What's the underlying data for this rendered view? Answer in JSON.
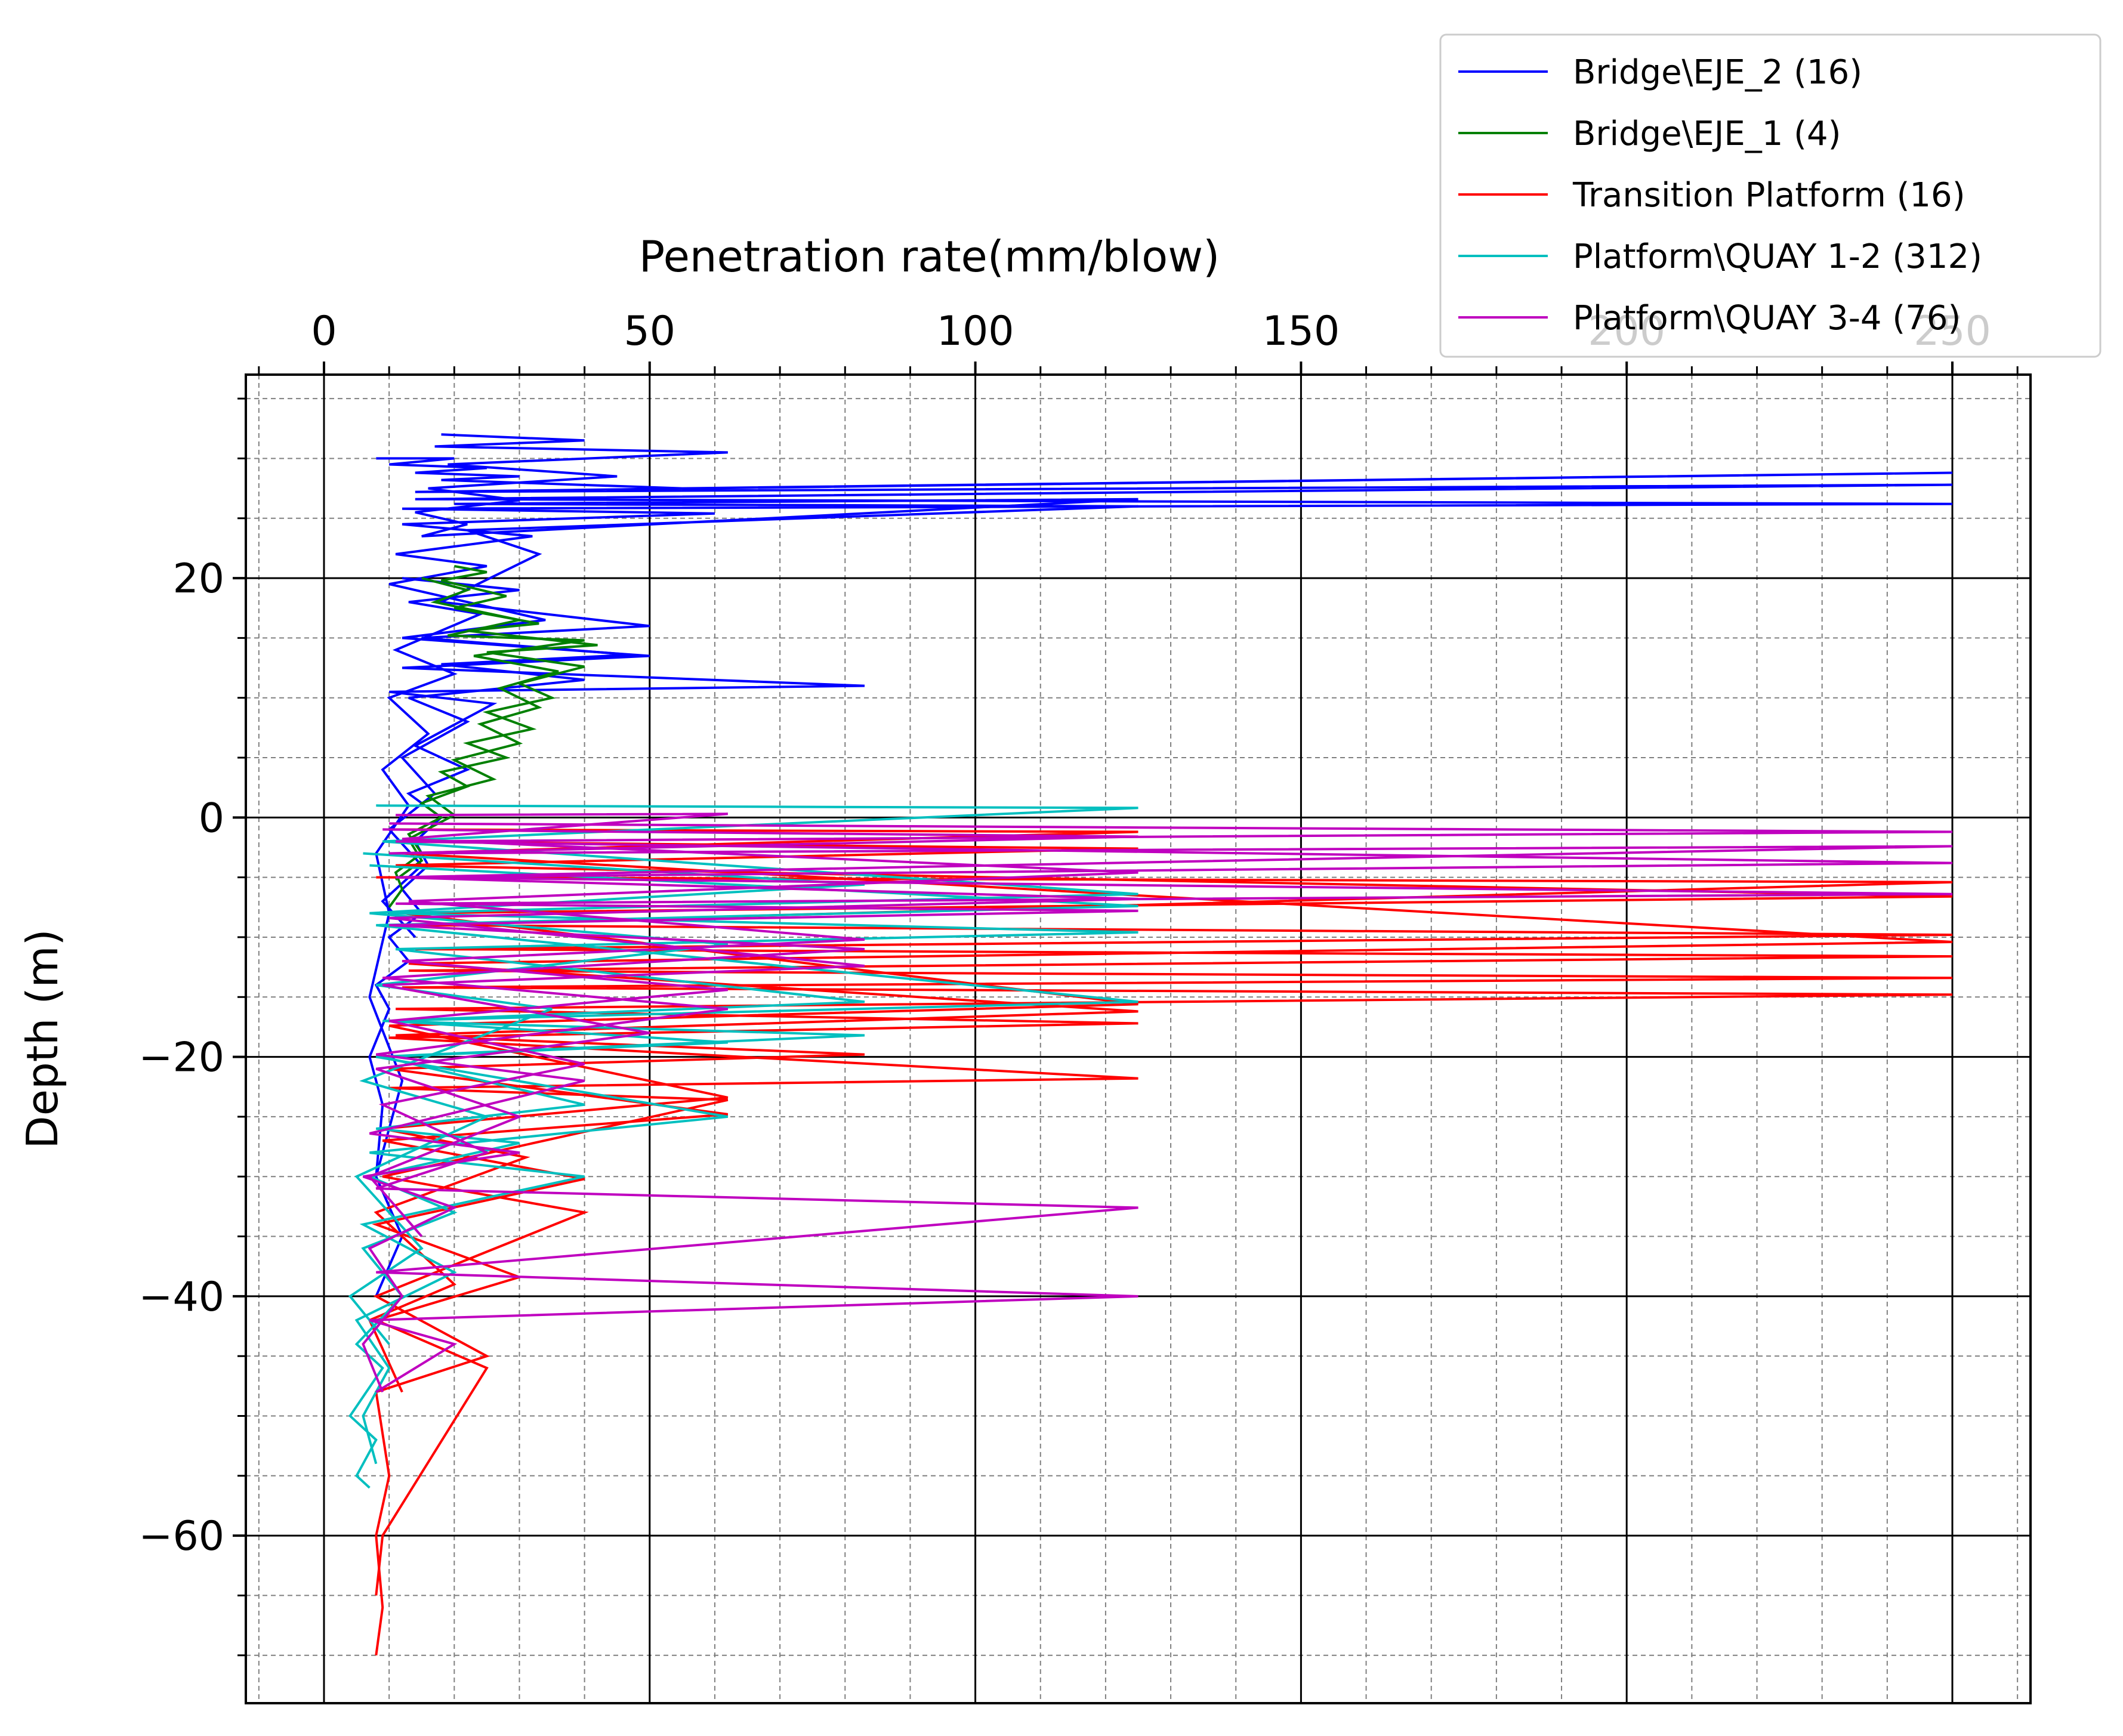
{
  "chart_data": {
    "type": "line",
    "title": "",
    "xlabel": "Penetration rate(mm/blow)",
    "ylabel": "Depth (m)",
    "xlim": [
      -12,
      262
    ],
    "ylim": [
      -74,
      37
    ],
    "x_ticks": [
      0,
      50,
      100,
      150,
      200,
      250
    ],
    "x_tick_labels": [
      "0",
      "50",
      "100",
      "150",
      "200",
      "250"
    ],
    "y_ticks": [
      -60,
      -40,
      -20,
      0,
      20
    ],
    "y_tick_labels": [
      "−60",
      "−40",
      "−20",
      "0",
      "20"
    ],
    "x_axis_position": "top",
    "grid": {
      "major": true,
      "minor": true,
      "minor_style": "dashed"
    },
    "legend": {
      "placement": "top-right, outside plot"
    },
    "series": [
      {
        "name": "Bridge\\EJE_2 (16)",
        "color": "#0000ff",
        "traces": [
          {
            "x": [
              8,
              20,
              10,
              25,
              14,
              30,
              18,
              55,
              250,
              14,
              250,
              14,
              250,
              12,
              60,
              12,
              32,
              11,
              25,
              10,
              34,
              12,
              50,
              12,
              83,
              10,
              26,
              14,
              22,
              13,
              18,
              14,
              16,
              12,
              15,
              10,
              13,
              8,
              10,
              7,
              9,
              8,
              12,
              8
            ],
            "y": [
              30,
              30,
              29.5,
              29.2,
              28.8,
              28.5,
              28.2,
              27.5,
              28.8,
              27.2,
              27.8,
              26.6,
              26.2,
              25.8,
              25.4,
              24.5,
              23.5,
              22.0,
              21.0,
              19.5,
              16.5,
              15.0,
              13.5,
              12.5,
              11.0,
              10.5,
              9.5,
              6.0,
              4.0,
              2.0,
              0,
              -2.0,
              -4.0,
              -6.0,
              -8.0,
              -10.0,
              -12.0,
              -14.0,
              -16.0,
              -20.0,
              -24.0,
              -30.0,
              -35.0,
              -40.0
            ]
          },
          {
            "x": [
              18,
              40,
              17,
              62,
              19,
              45,
              16,
              30,
              14,
              22,
              15,
              125,
              20,
              125,
              22,
              33,
              18,
              50,
              15,
              47,
              18,
              40,
              13,
              22,
              12,
              17,
              10,
              15,
              9,
              14
            ],
            "y": [
              32,
              31.5,
              31,
              30.5,
              29.5,
              28.5,
              27.5,
              26.5,
              25.5,
              24.5,
              23.5,
              26.6,
              26.2,
              26.0,
              24.0,
              22.0,
              18.0,
              16.0,
              15.0,
              13.6,
              12.8,
              11.5,
              10.0,
              8.0,
              5.0,
              2.0,
              -1.0,
              -4.0,
              -7.0,
              -10.0
            ]
          },
          {
            "x": [
              12,
              30,
              13,
              24,
              11,
              20,
              10,
              16,
              9,
              13,
              8,
              10,
              7,
              12,
              8
            ],
            "y": [
              20,
              19,
              18,
              17,
              14,
              12,
              10,
              7,
              4,
              1,
              -3,
              -8,
              -15,
              -22,
              -30
            ]
          }
        ]
      },
      {
        "name": "Bridge\\EJE_1 (4)",
        "color": "#008000",
        "traces": [
          {
            "x": [
              20,
              25,
              18,
              28,
              20,
              33,
              22,
              42,
              25,
              40,
              30,
              35,
              25,
              32,
              22,
              28,
              18,
              22,
              15,
              18,
              13,
              15,
              11,
              12,
              10
            ],
            "y": [
              21,
              20.5,
              19.8,
              18.5,
              17.5,
              16.2,
              15.6,
              14.4,
              13.8,
              12.6,
              11.2,
              10,
              8.8,
              7.4,
              6.2,
              5,
              3.8,
              2.6,
              1.2,
              0,
              -1.4,
              -3,
              -4.6,
              -6,
              -7.5
            ]
          },
          {
            "x": [
              15,
              22,
              17,
              30,
              19,
              40,
              23,
              36,
              27,
              33,
              24,
              30,
              20,
              26,
              16,
              20,
              13,
              15,
              11
            ],
            "y": [
              20,
              19,
              18,
              16.5,
              15.2,
              14.8,
              13.5,
              12.2,
              10.8,
              9.2,
              7.8,
              6.2,
              4.8,
              3.2,
              1.8,
              0.2,
              -1.8,
              -3.6,
              -5.2
            ]
          }
        ]
      },
      {
        "name": "Transition Platform (16)",
        "color": "#ff0000",
        "traces": [
          {
            "x": [
              8,
              250,
              15,
              250,
              14,
              250,
              13,
              250,
              12,
              250,
              11,
              125,
              10,
              125,
              10,
              62,
              9,
              40,
              8,
              25,
              8,
              10,
              8,
              9,
              8
            ],
            "y": [
              -5,
              -5.4,
              -9,
              -9.8,
              -11,
              -11.6,
              -12.8,
              -13.4,
              -14.2,
              -14.8,
              -16,
              -17.2,
              -18.4,
              -21.8,
              -22.6,
              -23.6,
              -30,
              -33,
              -40,
              -45,
              -48,
              -55,
              -60,
              -66,
              -70
            ]
          },
          {
            "x": [
              10,
              125,
              12,
              250,
              13,
              125,
              11,
              83,
              10,
              62,
              9,
              40,
              8,
              30,
              8,
              25,
              9,
              8
            ],
            "y": [
              -1,
              -1.2,
              -3,
              -10.4,
              -12.2,
              -16.2,
              -18.2,
              -19.8,
              -21,
              -24.8,
              -27,
              -30.2,
              -34,
              -38.4,
              -42,
              -46,
              -60,
              -65
            ]
          },
          {
            "x": [
              9,
              125,
              11,
              250,
              12,
              125,
              10,
              62,
              9,
              31,
              8,
              20,
              7,
              12
            ],
            "y": [
              -2,
              -2.6,
              -4,
              -6.6,
              -8,
              -15.6,
              -17.4,
              -23.4,
              -26,
              -28.4,
              -33,
              -39,
              -42,
              -48
            ]
          }
        ]
      },
      {
        "name": "Platform\\QUAY 1-2 (312)",
        "color": "#00bfbf",
        "traces": [
          {
            "x": [
              8,
              125,
              9,
              125,
              10,
              125,
              11,
              83,
              10,
              62,
              9,
              40,
              8,
              30,
              7,
              20,
              6,
              12,
              5,
              9,
              4,
              8,
              5,
              7
            ],
            "y": [
              1,
              0.8,
              -2,
              -6.4,
              -8,
              -9.6,
              -11,
              -15.4,
              -17,
              -18.8,
              -20,
              -24,
              -26,
              -27.2,
              -30,
              -33,
              -36,
              -40,
              -44,
              -46,
              -50,
              -52,
              -55,
              -56
            ]
          },
          {
            "x": [
              7,
              125,
              8,
              125,
              9,
              83,
              8,
              62,
              7,
              40,
              6,
              20,
              5,
              10,
              6,
              8
            ],
            "y": [
              -4,
              -7.4,
              -9,
              -15.4,
              -17,
              -18.2,
              -20,
              -25,
              -28,
              -30,
              -34,
              -38,
              -42,
              -46,
              -50,
              -54
            ]
          },
          {
            "x": [
              6,
              83,
              7,
              62,
              8,
              35,
              6,
              25,
              5,
              15,
              4,
              10
            ],
            "y": [
              -3,
              -5.6,
              -8,
              -10.6,
              -14,
              -16,
              -22,
              -25,
              -30,
              -36,
              -40,
              -44
            ]
          }
        ]
      },
      {
        "name": "Platform\\QUAY 3-4 (76)",
        "color": "#bf00bf",
        "traces": [
          {
            "x": [
              10,
              250,
              11,
              250,
              12,
              250,
              11,
              125,
              10,
              83,
              9,
              62,
              8,
              40,
              7,
              30,
              6,
              20,
              7,
              12,
              6,
              9
            ],
            "y": [
              -0.5,
              -1.2,
              -2,
              -3.8,
              -5,
              -6.4,
              -7.2,
              -7.8,
              -9,
              -11,
              -13.4,
              -16,
              -19.8,
              -22,
              -26.4,
              -28,
              -30,
              -32.6,
              -36,
              -40,
              -44,
              -48
            ]
          },
          {
            "x": [
              11,
              62,
              12,
              125,
              13,
              83,
              12,
              62,
              10,
              40,
              9,
              25,
              8,
              125,
              8,
              125,
              7,
              20,
              8
            ],
            "y": [
              0.2,
              0.3,
              -1.8,
              -4.6,
              -7,
              -10.2,
              -12,
              -14.4,
              -17,
              -20.6,
              -24,
              -28,
              -31,
              -32.6,
              -38,
              -40,
              -42,
              -44,
              -48
            ]
          },
          {
            "x": [
              9,
              125,
              10,
              250,
              11,
              125,
              10,
              83,
              9,
              50,
              8,
              30,
              7,
              15
            ],
            "y": [
              -1,
              -1.6,
              -3,
              -2.4,
              -5,
              -6.8,
              -8.4,
              -12.4,
              -14,
              -18,
              -21,
              -25,
              -30,
              -35
            ]
          }
        ]
      }
    ]
  }
}
